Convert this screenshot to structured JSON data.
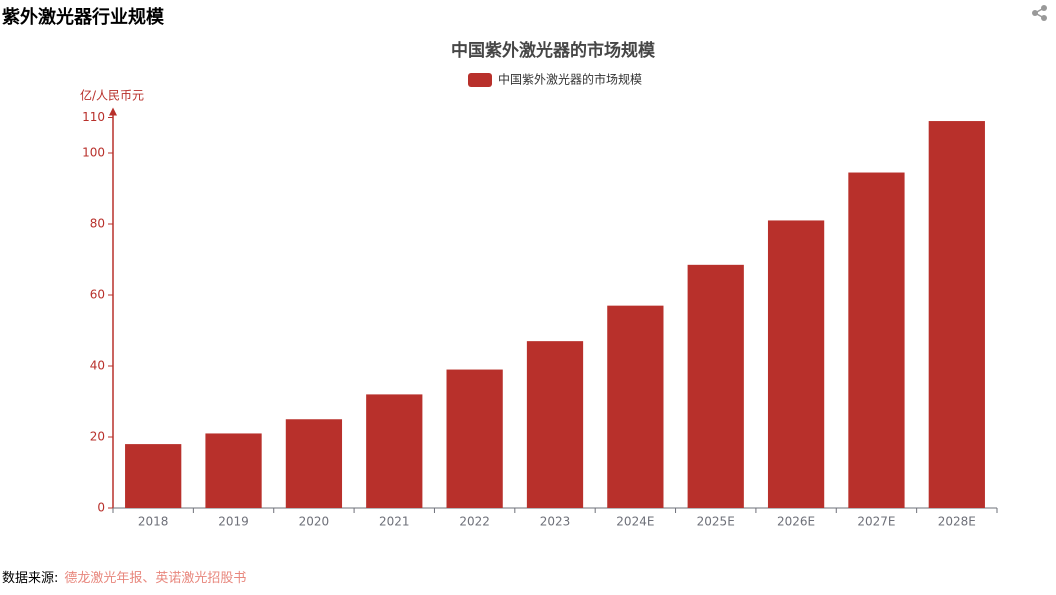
{
  "header": {
    "title": "紫外激光器行业规模"
  },
  "chart_data": {
    "type": "bar",
    "title": "中国紫外激光器的市场规模",
    "y_label": "亿/人民币元",
    "categories": [
      "2018",
      "2019",
      "2020",
      "2021",
      "2022",
      "2023",
      "2024E",
      "2025E",
      "2026E",
      "2027E",
      "2028E"
    ],
    "series": [
      {
        "name": "中国紫外激光器的市场规模",
        "color": "#b8302b",
        "values": [
          18,
          21,
          25,
          32,
          39,
          47,
          57,
          68.5,
          81,
          94.5,
          109
        ]
      }
    ],
    "ylim": [
      0,
      110
    ],
    "yticks": [
      0,
      20,
      40,
      60,
      80,
      100,
      110
    ],
    "grid": false
  },
  "footer": {
    "source_label": "数据来源:",
    "source": "德龙激光年报、英诺激光招股书"
  }
}
